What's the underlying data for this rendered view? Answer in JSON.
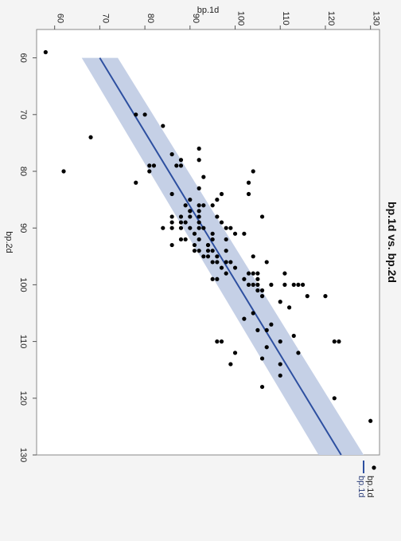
{
  "chart_data": {
    "type": "scatter",
    "orientation": "rotated 90 degrees clockwise",
    "title": "bp.1d vs. bp.2d",
    "xlabel": "bp.2d",
    "ylabel": "bp.1d",
    "xlim": [
      55,
      130
    ],
    "ylim": [
      56,
      132
    ],
    "x_ticks": [
      60,
      70,
      80,
      90,
      100,
      110,
      120,
      130
    ],
    "y_ticks": [
      60,
      70,
      80,
      90,
      100,
      110,
      120,
      130
    ],
    "grid": false,
    "legend_position": "bottom-right",
    "legend": [
      {
        "label": "bp.1d",
        "marker": "point"
      },
      {
        "label": "bp.1d",
        "marker": "line"
      }
    ],
    "colors": {
      "points": "#000000",
      "fit_line": "#2d4fa0",
      "confidence_band": "#c5d0e6",
      "plot_background": "#ffffff",
      "page_background": "#f4f4f4"
    },
    "fit_line": {
      "x": [
        60,
        130
      ],
      "y": [
        70,
        123.5
      ]
    },
    "confidence_band": {
      "x": [
        60,
        130
      ],
      "upper": [
        74,
        128.5
      ],
      "lower": [
        66,
        118.5
      ]
    },
    "series": [
      {
        "name": "bp.1d",
        "x": [
          59,
          80,
          70,
          70,
          74,
          72,
          80,
          82,
          76,
          77,
          78,
          78,
          79,
          79,
          79,
          79,
          80,
          82,
          83,
          84,
          84,
          85,
          85,
          86,
          86,
          86,
          87,
          87,
          88,
          88,
          88,
          88,
          88,
          89,
          89,
          89,
          89,
          90,
          90,
          90,
          90,
          90,
          90,
          90,
          91,
          91,
          92,
          92,
          92,
          92,
          92,
          93,
          93,
          93,
          94,
          94,
          94,
          94,
          94,
          95,
          95,
          95,
          96,
          96,
          96,
          96,
          97,
          97,
          98,
          98,
          98,
          98,
          98,
          99,
          99,
          99,
          100,
          100,
          100,
          100,
          100,
          100,
          100,
          101,
          101,
          102,
          102,
          103,
          104,
          105,
          106,
          107,
          108,
          108,
          109,
          110,
          110,
          111,
          112,
          113,
          114,
          116,
          118,
          120,
          124,
          110,
          110,
          112,
          114,
          110,
          102,
          91,
          99,
          90,
          84,
          81,
          88,
          96,
          89,
          100,
          95,
          87,
          93,
          86,
          91
        ],
        "y": [
          58,
          62,
          80,
          78,
          68,
          84,
          104,
          103,
          92,
          86,
          88,
          92,
          82,
          88,
          87,
          81,
          81,
          78,
          92,
          86,
          97,
          96,
          90,
          89,
          95,
          92,
          90,
          92,
          90,
          92,
          86,
          88,
          96,
          88,
          89,
          86,
          92,
          88,
          86,
          84,
          90,
          92,
          93,
          98,
          91,
          95,
          88,
          92,
          89,
          98,
          95,
          86,
          91,
          94,
          92,
          94,
          91,
          95,
          98,
          96,
          94,
          93,
          96,
          98,
          95,
          99,
          100,
          97,
          98,
          103,
          104,
          105,
          111,
          95,
          102,
          105,
          103,
          104,
          105,
          108,
          114,
          115,
          113,
          105,
          106,
          116,
          106,
          110,
          112,
          104,
          102,
          108,
          105,
          107,
          113,
          110,
          122,
          107,
          114,
          106,
          110,
          110,
          106,
          122,
          130,
          96,
          97,
          100,
          99,
          123,
          120,
          102,
          96,
          99,
          103,
          93,
          106,
          107,
          97,
          111,
          104,
          90,
          94,
          93,
          100
        ]
      }
    ]
  }
}
